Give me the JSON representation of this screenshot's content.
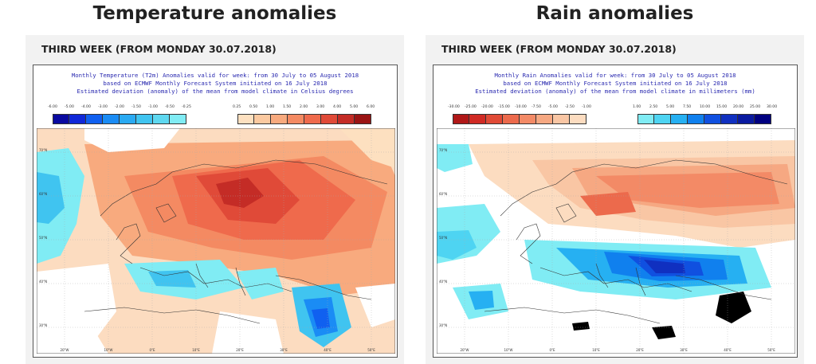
{
  "left": {
    "heading": "Temperature anomalies",
    "subheading": "THIRD WEEK (FROM MONDAY 30.07.2018)",
    "caption": [
      "Monthly Temperature (T2m) Anomalies valid for week: from 30 July to 05 August 2018",
      "based on ECMWF Monthly Forecast System initiated on 16 July 2018",
      "Estimated deviation (anomaly) of the mean from model climate in Celsius degrees"
    ],
    "neg_ticks": [
      "-6.00",
      "-5.00",
      "-4.00",
      "-3.00",
      "-2.00",
      "-1.50",
      "-1.00",
      "-0.50",
      "-0.25"
    ],
    "pos_ticks": [
      "0.25",
      "0.50",
      "1.00",
      "1.50",
      "2.00",
      "3.00",
      "4.00",
      "5.00",
      "6.00"
    ],
    "neg_colors": [
      "#0a0aa0",
      "#1028d8",
      "#1060f0",
      "#1a8cf5",
      "#2aaaf2",
      "#40c4f0",
      "#5ed8f0",
      "#80ecf4"
    ],
    "pos_colors": [
      "#fde0c0",
      "#fbc9a0",
      "#f8aa7e",
      "#f48a62",
      "#ef6a4c",
      "#e04a38",
      "#c42c26",
      "#9a1414"
    ],
    "lon_labels": [
      "20°W",
      "10°W",
      "0°E",
      "10°E",
      "20°E",
      "30°E",
      "40°E",
      "50°E"
    ],
    "lat_labels": [
      "70°N",
      "60°N",
      "50°N",
      "40°N",
      "30°N"
    ]
  },
  "right": {
    "heading": "Rain anomalies",
    "subheading": "THIRD WEEK (FROM MONDAY 30.07.2018)",
    "caption": [
      "Monthly Rain Anomalies valid for week: from 30 July to 05 August 2018",
      "based on ECMWF Monthly Forecast System initiated on 16 July 2018",
      "Estimated deviation (anomaly) of the mean from model climate in millimeters (mm)"
    ],
    "neg_ticks": [
      "-30.00",
      "-25.00",
      "-20.00",
      "-15.00",
      "-10.00",
      "-7.50",
      "-5.00",
      "-2.50",
      "-1.00"
    ],
    "pos_ticks": [
      "1.00",
      "2.50",
      "5.00",
      "7.50",
      "10.00",
      "15.00",
      "20.00",
      "25.00",
      "30.00"
    ],
    "neg_colors": [
      "#b01818",
      "#d02a24",
      "#e04a36",
      "#ec6a4c",
      "#f38a66",
      "#f6a882",
      "#f9c6a4",
      "#fcdcc0"
    ],
    "pos_colors": [
      "#80ecf4",
      "#4ed4f2",
      "#26b0f2",
      "#1080ee",
      "#1050e0",
      "#1030c0",
      "#0a1aa0",
      "#000080"
    ],
    "lon_labels": [
      "20°W",
      "10°W",
      "0°E",
      "10°E",
      "20°E",
      "30°E",
      "40°E",
      "50°E"
    ],
    "lat_labels": [
      "70°N",
      "60°N",
      "50°N",
      "40°N",
      "30°N"
    ]
  }
}
